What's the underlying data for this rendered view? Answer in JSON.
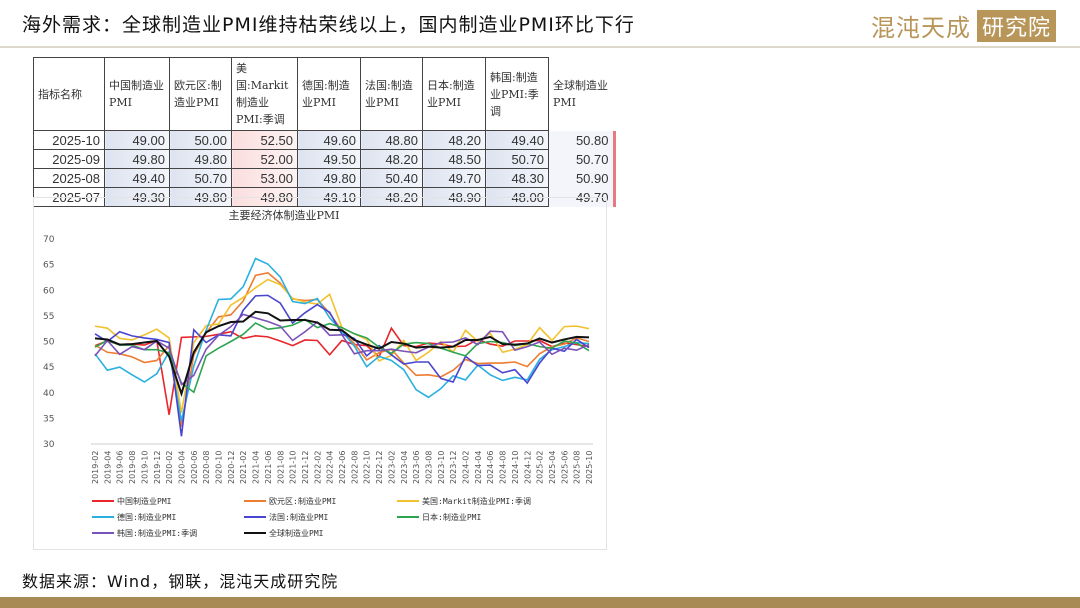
{
  "header": {
    "title": "海外需求：全球制造业PMI维持枯荣线以上，国内制造业PMI环比下行",
    "logo_text": "混沌天成",
    "logo_badge": "研究院"
  },
  "table": {
    "columns": [
      "指标名称",
      "中国制造业PMI",
      "欧元区:制造业PMI",
      "美国:Markit制造业PMI:季调",
      "德国:制造业PMI",
      "法国:制造业PMI",
      "日本:制造业PMI",
      "韩国:制造业PMI:季调",
      "全球制造业PMI"
    ],
    "rows": [
      [
        "2025-10",
        "49.00",
        "50.00",
        "52.50",
        "49.60",
        "48.80",
        "48.20",
        "49.40",
        "50.80"
      ],
      [
        "2025-09",
        "49.80",
        "49.80",
        "52.00",
        "49.50",
        "48.20",
        "48.50",
        "50.70",
        "50.70"
      ],
      [
        "2025-08",
        "49.40",
        "50.70",
        "53.00",
        "49.80",
        "50.40",
        "49.70",
        "48.30",
        "50.90"
      ],
      [
        "2025-07",
        "49.30",
        "49.80",
        "49.80",
        "49.10",
        "48.20",
        "48.90",
        "48.00",
        "49.70"
      ]
    ]
  },
  "chart_data": {
    "type": "line",
    "title": "主要经济体制造业PMI",
    "ylim": [
      30,
      70
    ],
    "yticks": [
      30,
      35,
      40,
      45,
      50,
      55,
      60,
      65,
      70
    ],
    "grid": false,
    "legend": "bottom",
    "x": [
      "2019-02",
      "2019-04",
      "2019-06",
      "2019-08",
      "2019-10",
      "2019-12",
      "2020-02",
      "2020-04",
      "2020-06",
      "2020-08",
      "2020-10",
      "2020-12",
      "2021-02",
      "2021-04",
      "2021-06",
      "2021-08",
      "2021-10",
      "2021-12",
      "2022-02",
      "2022-04",
      "2022-06",
      "2022-08",
      "2022-10",
      "2022-12",
      "2023-02",
      "2023-04",
      "2023-06",
      "2023-08",
      "2023-10",
      "2023-12",
      "2024-02",
      "2024-04",
      "2024-06",
      "2024-08",
      "2024-10",
      "2024-12",
      "2025-02",
      "2025-04",
      "2025-06",
      "2025-08",
      "2025-10"
    ],
    "series": [
      {
        "name": "中国制造业PMI",
        "color": "#e8262b",
        "values": [
          49.2,
          50.1,
          49.4,
          49.5,
          49.3,
          50.2,
          35.7,
          50.8,
          50.9,
          51.0,
          51.4,
          51.9,
          50.6,
          51.1,
          50.9,
          50.1,
          49.2,
          50.3,
          50.2,
          47.4,
          50.2,
          49.4,
          49.2,
          47.0,
          52.6,
          49.2,
          49.0,
          49.7,
          49.5,
          49.0,
          49.1,
          50.4,
          49.5,
          49.1,
          50.1,
          50.1,
          50.2,
          49.0,
          49.7,
          49.4,
          49.0
        ]
      },
      {
        "name": "欧元区:制造业PMI",
        "color": "#ed7d31",
        "values": [
          49.3,
          47.9,
          47.6,
          47.0,
          45.9,
          46.3,
          49.2,
          33.4,
          47.4,
          51.7,
          54.8,
          55.2,
          57.9,
          62.9,
          63.4,
          61.4,
          58.3,
          58.0,
          58.2,
          55.5,
          52.1,
          49.6,
          46.4,
          47.8,
          48.5,
          45.8,
          43.4,
          43.5,
          43.1,
          44.4,
          46.5,
          45.7,
          45.8,
          45.8,
          46.0,
          45.1,
          47.6,
          49.0,
          49.5,
          50.7,
          50.0
        ]
      },
      {
        "name": "美国:Markit制造业PMI:季调",
        "color": "#f2c12e",
        "values": [
          53.0,
          52.6,
          50.6,
          50.3,
          51.3,
          52.4,
          50.7,
          36.1,
          49.8,
          53.1,
          53.4,
          57.1,
          58.6,
          60.5,
          62.1,
          61.1,
          58.4,
          57.7,
          57.3,
          59.2,
          52.7,
          51.5,
          50.4,
          46.2,
          47.3,
          50.2,
          46.3,
          47.9,
          50.0,
          47.9,
          52.2,
          50.0,
          51.6,
          47.9,
          48.5,
          49.4,
          52.7,
          50.2,
          52.9,
          53.0,
          52.5
        ]
      },
      {
        "name": "德国:制造业PMI",
        "color": "#2ab0e0",
        "values": [
          47.6,
          44.4,
          45.0,
          43.5,
          42.1,
          43.7,
          48.0,
          34.5,
          45.2,
          52.2,
          58.2,
          58.3,
          60.7,
          66.2,
          65.1,
          62.6,
          57.8,
          57.4,
          58.4,
          54.6,
          52.0,
          49.1,
          45.1,
          47.1,
          46.3,
          44.5,
          40.6,
          39.1,
          40.8,
          43.3,
          42.5,
          45.4,
          43.5,
          42.4,
          43.0,
          42.5,
          46.5,
          48.4,
          49.0,
          49.8,
          49.6
        ]
      },
      {
        "name": "法国:制造业PMI",
        "color": "#4a45d0",
        "values": [
          51.5,
          50.0,
          51.9,
          51.1,
          50.7,
          50.4,
          49.8,
          31.5,
          52.3,
          49.8,
          51.3,
          51.1,
          56.1,
          58.9,
          59.0,
          57.5,
          53.6,
          55.6,
          57.2,
          55.7,
          51.4,
          50.6,
          47.2,
          49.2,
          47.4,
          45.6,
          46.0,
          46.0,
          42.8,
          42.1,
          47.1,
          45.3,
          45.4,
          43.9,
          44.5,
          41.9,
          45.8,
          48.7,
          48.1,
          50.4,
          48.8
        ]
      },
      {
        "name": "日本:制造业PMI",
        "color": "#2ea44f",
        "values": [
          48.9,
          50.2,
          49.3,
          49.3,
          48.4,
          48.4,
          47.8,
          41.9,
          40.1,
          47.2,
          48.7,
          50.0,
          51.4,
          53.6,
          52.4,
          52.7,
          53.2,
          54.3,
          52.7,
          53.5,
          52.7,
          51.5,
          50.7,
          48.9,
          47.7,
          49.5,
          49.8,
          49.6,
          48.7,
          47.9,
          47.2,
          49.6,
          50.0,
          49.8,
          49.2,
          49.6,
          49.0,
          48.7,
          50.1,
          49.7,
          48.2
        ]
      },
      {
        "name": "韩国:制造业PMI:季调",
        "color": "#7a52b8",
        "values": [
          47.2,
          50.2,
          47.5,
          49.0,
          48.4,
          50.1,
          48.7,
          41.6,
          43.4,
          48.5,
          51.2,
          52.9,
          55.3,
          54.6,
          53.9,
          53.0,
          50.2,
          51.9,
          53.8,
          51.2,
          51.3,
          47.6,
          48.2,
          48.2,
          48.5,
          48.1,
          47.8,
          48.9,
          49.8,
          49.9,
          50.7,
          49.4,
          52.0,
          51.9,
          48.3,
          49.0,
          49.9,
          47.5,
          48.7,
          48.3,
          49.4
        ]
      },
      {
        "name": "全球制造业PMI",
        "color": "#111111",
        "values": [
          50.6,
          50.4,
          49.4,
          49.5,
          49.8,
          50.1,
          47.1,
          39.8,
          47.9,
          51.8,
          53.0,
          53.8,
          53.9,
          55.8,
          55.5,
          54.1,
          54.2,
          54.2,
          53.7,
          52.3,
          52.2,
          50.3,
          49.4,
          48.6,
          49.9,
          49.6,
          48.8,
          49.0,
          48.8,
          49.0,
          50.3,
          50.3,
          50.9,
          49.5,
          49.4,
          49.6,
          50.6,
          49.8,
          50.4,
          50.9,
          50.8
        ]
      }
    ]
  },
  "footer": {
    "source": "数据来源：Wind，钢联，混沌天成研究院"
  }
}
